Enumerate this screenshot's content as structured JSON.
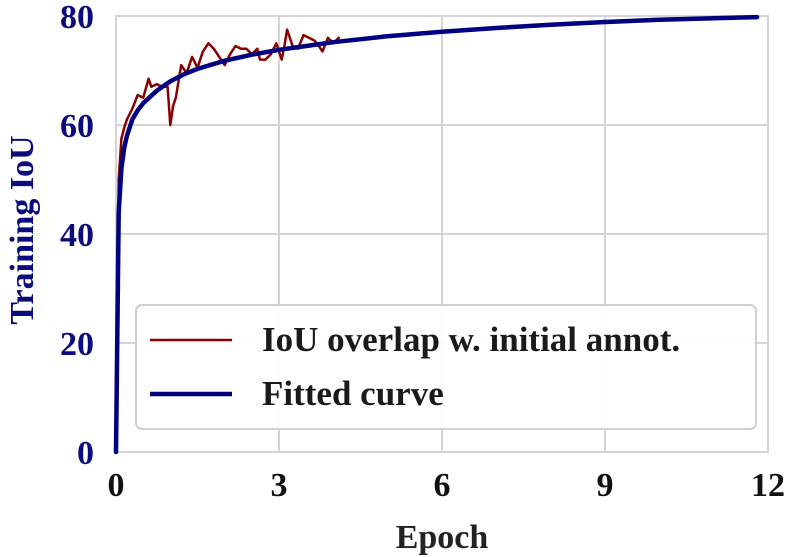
{
  "chart_data": {
    "type": "line",
    "title": "",
    "xlabel": "Epoch",
    "ylabel": "Training IoU",
    "xlim": [
      0,
      12
    ],
    "ylim": [
      0,
      80
    ],
    "xticks": [
      0,
      3,
      6,
      9,
      12
    ],
    "yticks": [
      0,
      20,
      40,
      60,
      80
    ],
    "grid": true,
    "legend_position": "lower-right",
    "colors": {
      "observed": "#8b0000",
      "fitted": "#000080",
      "ytick_color": "#0b0b80",
      "ylabel_color": "#0b0b80",
      "xlabel_color": "#222222",
      "grid_color": "#d4d4d4"
    },
    "series": [
      {
        "name": "IoU overlap w. initial annot.",
        "x": [
          0.0,
          0.05,
          0.1,
          0.15,
          0.2,
          0.3,
          0.4,
          0.5,
          0.6,
          0.65,
          0.75,
          0.85,
          0.95,
          1.0,
          1.05,
          1.1,
          1.2,
          1.3,
          1.4,
          1.5,
          1.6,
          1.7,
          1.8,
          1.9,
          2.0,
          2.1,
          2.2,
          2.3,
          2.4,
          2.5,
          2.6,
          2.65,
          2.75,
          2.85,
          2.95,
          3.05,
          3.1,
          3.15,
          3.25,
          3.35,
          3.45,
          3.55,
          3.65,
          3.7,
          3.8,
          3.9,
          4.0,
          4.1
        ],
        "y": [
          0.0,
          50.0,
          57.5,
          59.5,
          61.0,
          63.0,
          65.5,
          65.0,
          68.5,
          67.0,
          67.5,
          67.0,
          67.0,
          60.0,
          63.5,
          65.0,
          71.0,
          69.5,
          72.5,
          70.5,
          73.5,
          75.0,
          74.0,
          72.5,
          71.0,
          73.0,
          74.5,
          74.0,
          74.0,
          73.0,
          74.0,
          72.0,
          72.0,
          73.0,
          75.0,
          72.0,
          74.5,
          77.5,
          74.5,
          74.0,
          76.5,
          76.0,
          75.5,
          75.0,
          73.5,
          76.0,
          75.0,
          76.0
        ]
      },
      {
        "name": "Fitted curve",
        "x": [
          0.0,
          0.05,
          0.1,
          0.15,
          0.2,
          0.3,
          0.4,
          0.5,
          0.75,
          1.0,
          1.25,
          1.5,
          2.0,
          2.5,
          3.0,
          3.5,
          4.0,
          5.0,
          6.0,
          7.0,
          8.0,
          9.0,
          10.0,
          11.0,
          11.8
        ],
        "y": [
          0.0,
          44.0,
          52.0,
          55.8,
          58.0,
          61.0,
          62.7,
          64.0,
          66.3,
          68.0,
          69.3,
          70.3,
          71.8,
          72.9,
          73.8,
          74.5,
          75.2,
          76.3,
          77.1,
          77.8,
          78.4,
          78.9,
          79.3,
          79.6,
          79.8
        ]
      }
    ]
  }
}
